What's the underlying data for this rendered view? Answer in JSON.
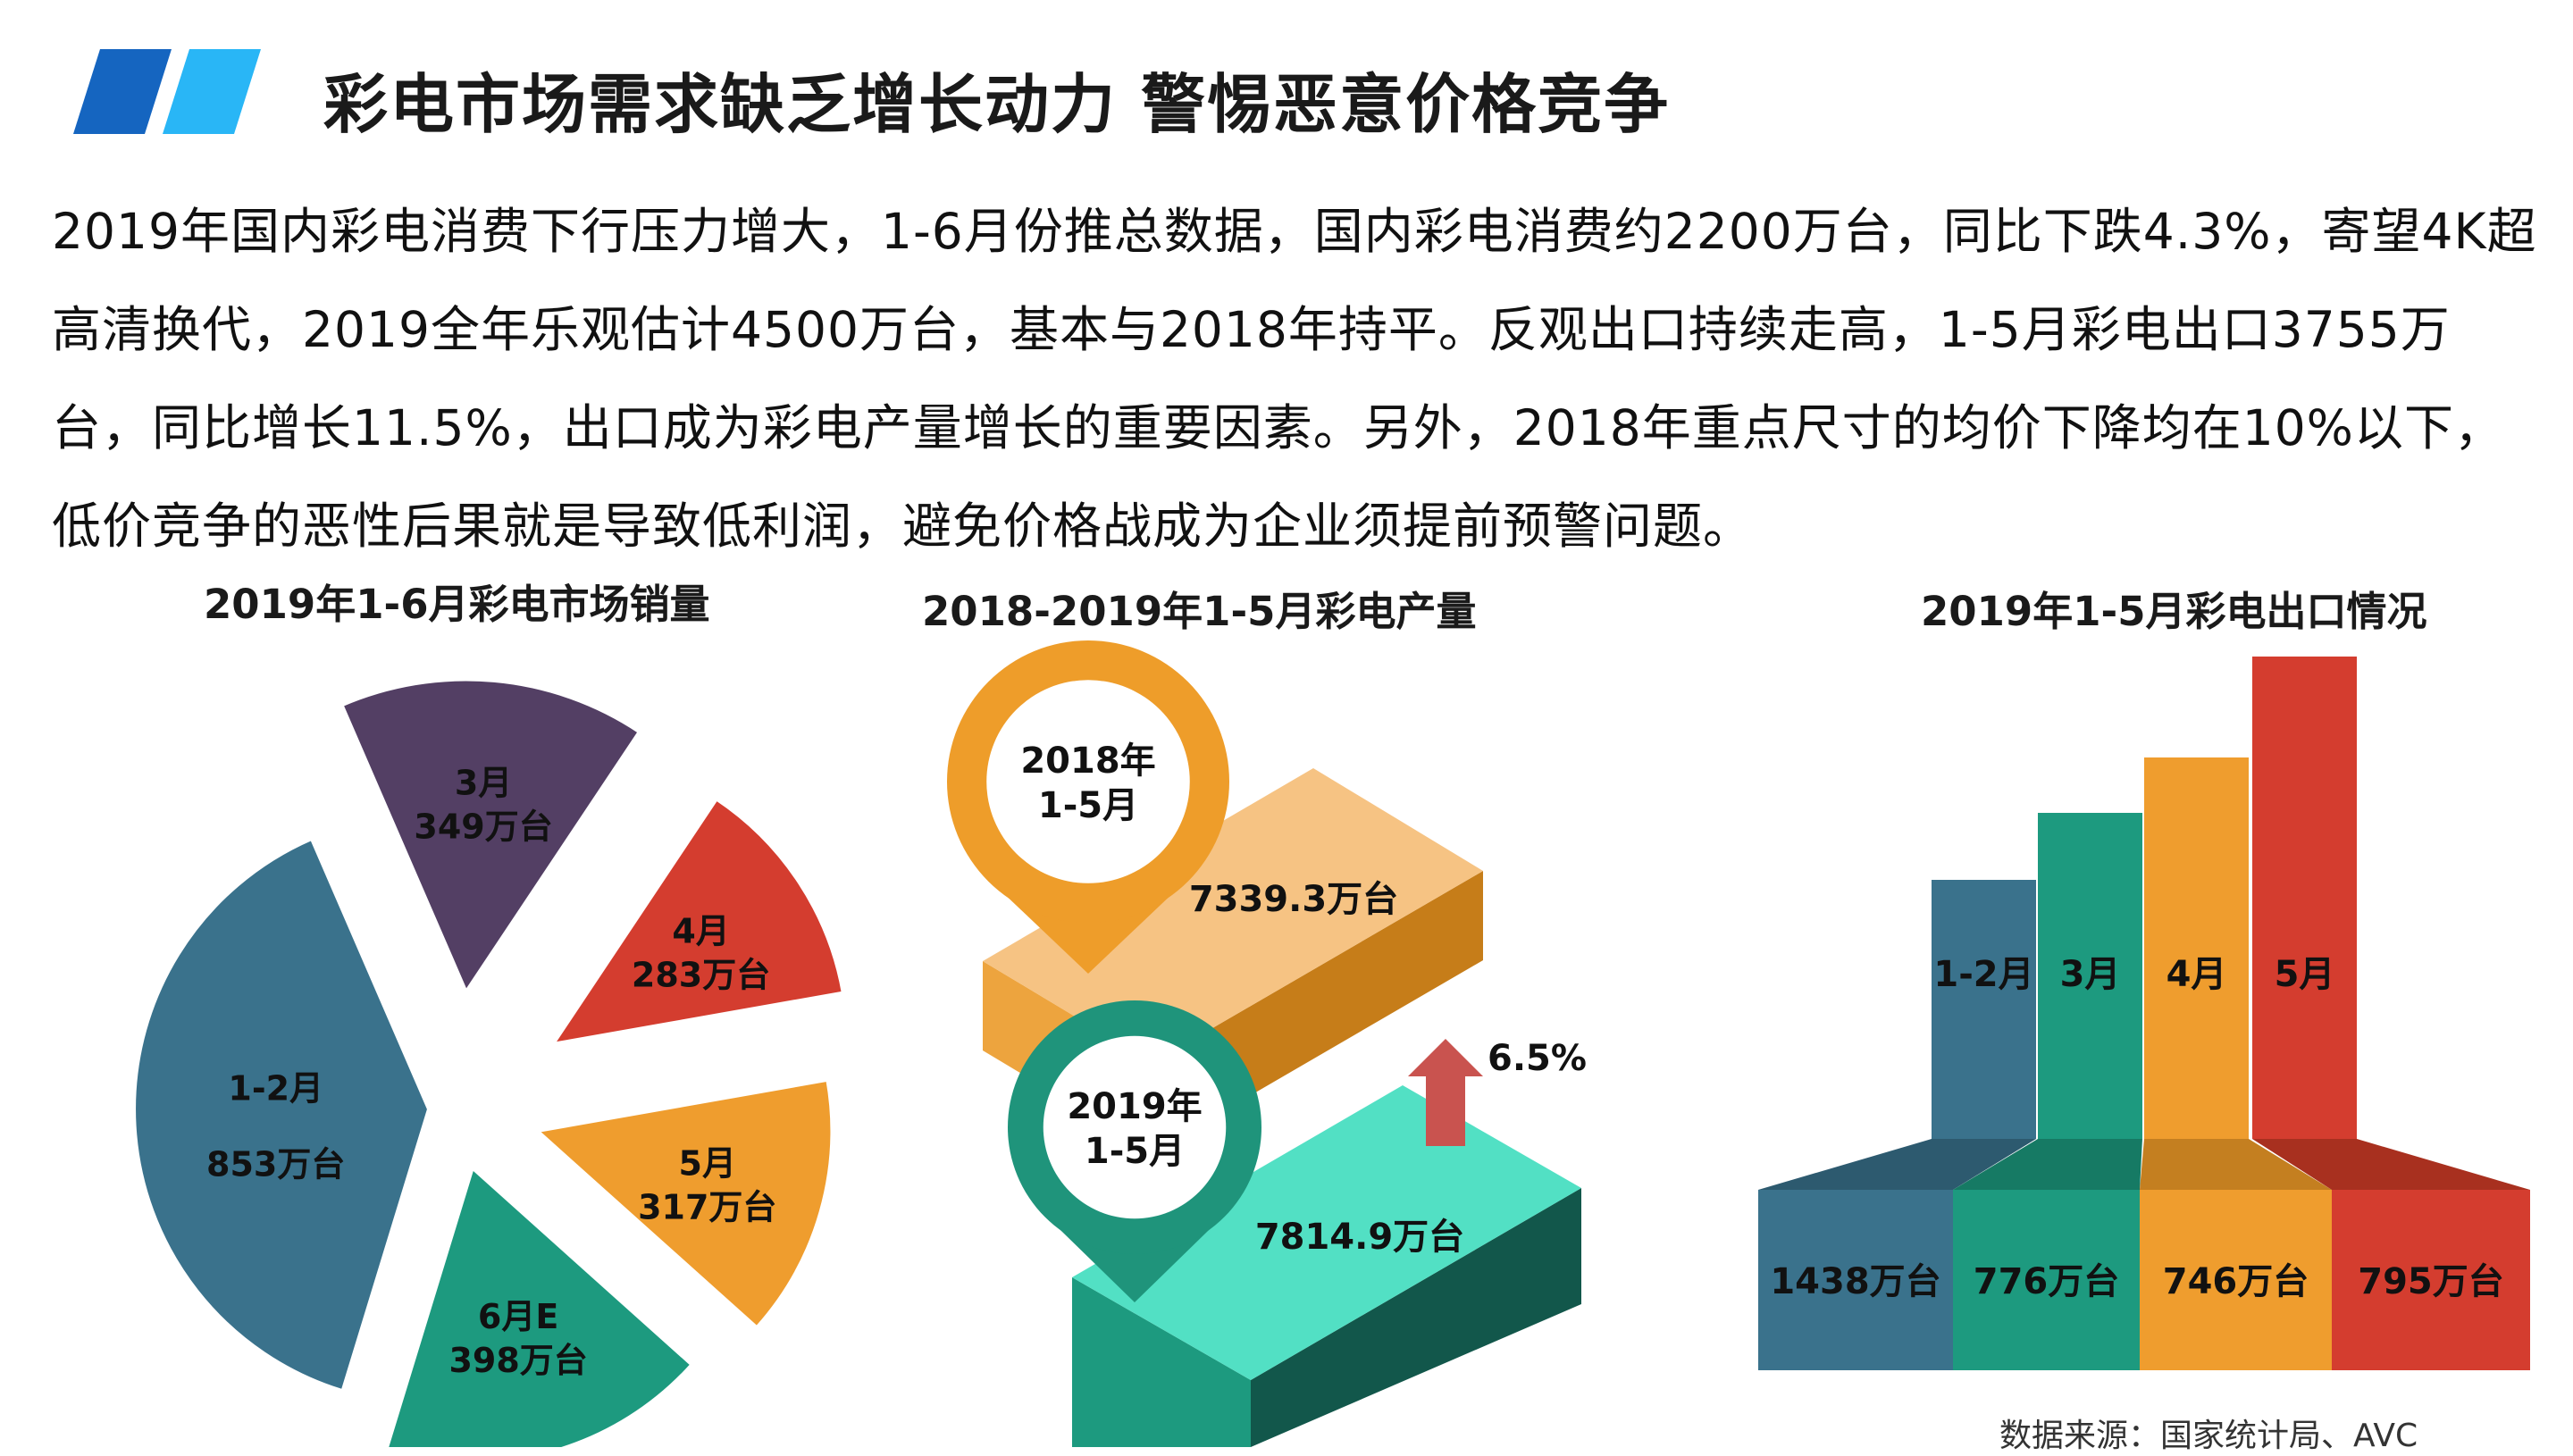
{
  "slide": {
    "title": "彩电市场需求缺乏增长动力 警惕恶意价格竞争",
    "paragraph": "2019年国内彩电消费下行压力增大，1-6月份推总数据，国内彩电消费约2200万台，同比下跌4.3%，寄望4K超高清换代，2019全年乐观估计4500万台，基本与2018年持平。反观出口持续走高，1-5月彩电出口3755万台，同比增长11.5%，出口成为彩电产量增长的重要因素。另外，2018年重点尺寸的均价下降均在10%以下，低价竞争的恶性后果就是导致低利润，避免价格战成为企业须提前预警问题。",
    "source": "数据来源：国家统计局、AVC",
    "accent_colors": [
      "#1565c0",
      "#29b6f6"
    ]
  },
  "chart_data": [
    {
      "type": "pie",
      "title": "2019年1-6月彩电市场销量",
      "unit": "万台",
      "slices": [
        {
          "name": "1-2月",
          "value": 853,
          "label": "853万台",
          "color": "#3a728c"
        },
        {
          "name": "3月",
          "value": 349,
          "label": "349万台",
          "color": "#533f64"
        },
        {
          "name": "4月",
          "value": 283,
          "label": "283万台",
          "color": "#d43d2f"
        },
        {
          "name": "5月",
          "value": 317,
          "label": "317万台",
          "color": "#ef9d2e"
        },
        {
          "name": "6月E",
          "value": 398,
          "label": "398万台",
          "color": "#1d9a7f"
        }
      ]
    },
    {
      "type": "bar",
      "title": "2018-2019年1-5月彩电产量",
      "unit": "万台",
      "categories": [
        "2018年 1-5月",
        "2019年 1-5月"
      ],
      "values": [
        7339.3,
        7814.9
      ],
      "labels": [
        "7339.3万台",
        "7814.9万台"
      ],
      "pin_labels": [
        [
          "2018年",
          "1-5月"
        ],
        [
          "2019年",
          "1-5月"
        ]
      ],
      "growth": "6.5%",
      "colors": {
        "block2018": "#f6c383",
        "block2018_side": "#c67d19",
        "block2018_front": "#eda43e",
        "pin2018": "#ee9d2a",
        "block2019": "#52e0c4",
        "block2019_side": "#12574b",
        "block2019_front": "#1d9a7f",
        "pin2019": "#1f947b",
        "arrow": "#c9534f"
      }
    },
    {
      "type": "bar",
      "title": "2019年1-5月彩电出口情况",
      "unit": "万台",
      "categories": [
        "1-2月",
        "3月",
        "4月",
        "5月"
      ],
      "values": [
        1438,
        776,
        746,
        795
      ],
      "labels": [
        "1438万台",
        "776万台",
        "746万台",
        "795万台"
      ],
      "colors": [
        "#3a728c",
        "#1d9a7f",
        "#ef9d2e",
        "#d43d2f"
      ],
      "top_colors": [
        "#2d5a6f",
        "#167a64",
        "#c47f20",
        "#a8301f"
      ]
    }
  ]
}
